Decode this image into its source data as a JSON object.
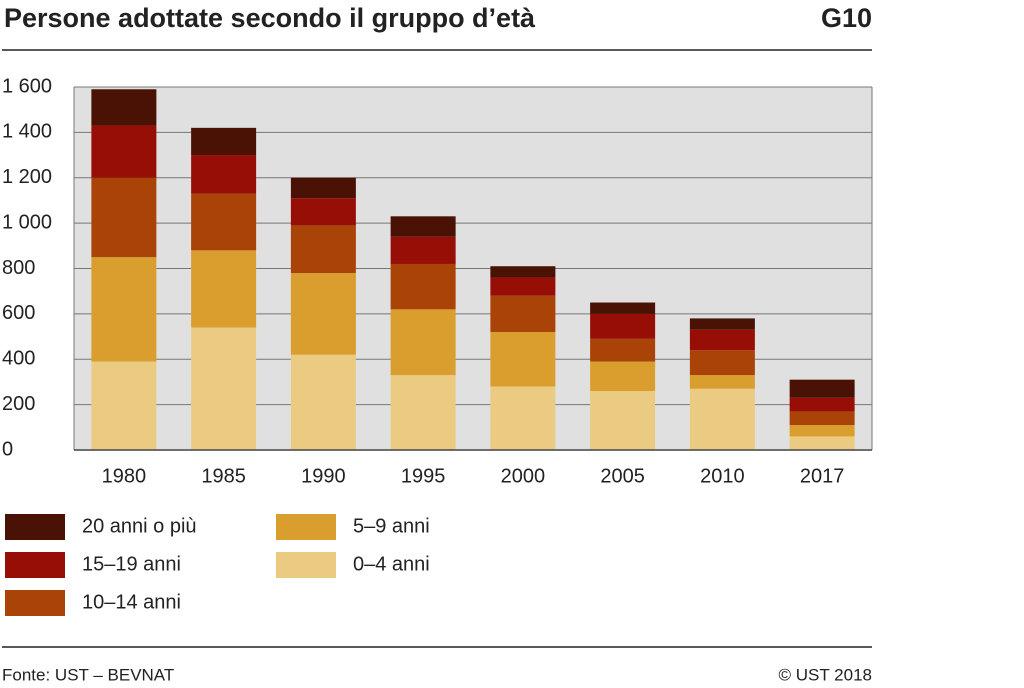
{
  "chart_data": {
    "type": "stacked-bar",
    "title": "Persone adottate secondo il gruppo d’età",
    "label": "G10",
    "categories": [
      "1980",
      "1985",
      "1990",
      "1995",
      "2000",
      "2005",
      "2010",
      "2017"
    ],
    "series": [
      {
        "name": "0–4 anni",
        "color": "#ebcb82",
        "values": [
          390,
          540,
          420,
          330,
          280,
          260,
          270,
          60
        ]
      },
      {
        "name": "5–9 anni",
        "color": "#d99e2e",
        "values": [
          460,
          340,
          360,
          290,
          240,
          130,
          60,
          50
        ]
      },
      {
        "name": "10–14 anni",
        "color": "#aa4307",
        "values": [
          350,
          250,
          210,
          200,
          160,
          100,
          110,
          60
        ]
      },
      {
        "name": "15–19 anni",
        "color": "#960e05",
        "values": [
          230,
          170,
          120,
          120,
          80,
          110,
          90,
          60
        ]
      },
      {
        "name": "20 anni o più",
        "color": "#4a1204",
        "values": [
          160,
          120,
          90,
          90,
          50,
          50,
          50,
          80
        ]
      }
    ],
    "ylim": [
      0,
      1600
    ],
    "yticks": [
      0,
      200,
      400,
      600,
      800,
      {
        "value": 1000,
        "label": "1 000"
      },
      {
        "value": 1200,
        "label": "1 200"
      },
      {
        "value": 1400,
        "label": "1 400"
      },
      {
        "value": 1600,
        "label": "1 600"
      }
    ],
    "grid": true,
    "source": "Fonte: UST – BEVNAT",
    "copyright": "© UST 2018"
  }
}
